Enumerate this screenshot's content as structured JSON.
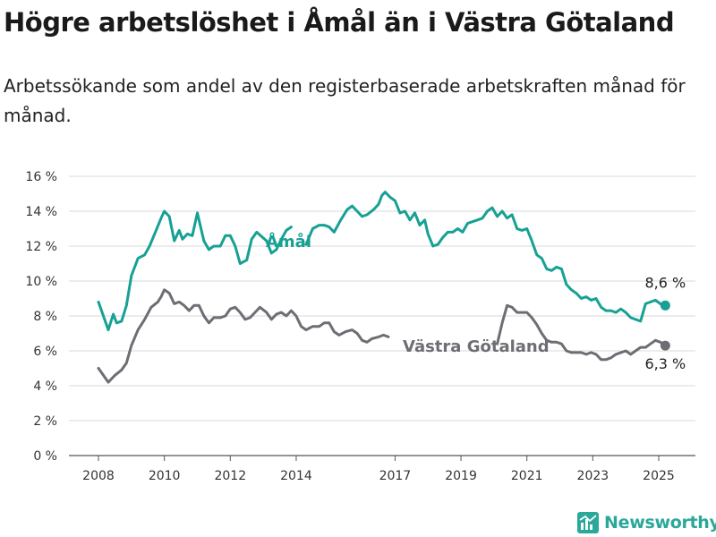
{
  "title": "Högre arbetslöshet i Åmål än i Västra Götaland",
  "subtitle": "Arbetssökande som andel av den registerbaserade arbetskraften månad för månad.",
  "brand": {
    "name": "Newsworthy",
    "icon": "bar-chart-icon",
    "color": "#2aa89a"
  },
  "chart_data": {
    "type": "line",
    "title": "Högre arbetslöshet i Åmål än i Västra Götaland",
    "subtitle": "Arbetssökande som andel av den registerbaserade arbetskraften månad för månad.",
    "xlabel": "",
    "ylabel": "",
    "xlim": [
      2007.9,
      2026.1
    ],
    "ylim": [
      0,
      16
    ],
    "x_ticks": [
      2008,
      2010,
      2012,
      2014,
      2017,
      2019,
      2021,
      2023,
      2025
    ],
    "x_tick_labels": [
      "2008",
      "2010",
      "2012",
      "2014",
      "2017",
      "2019",
      "2021",
      "2023",
      "2025"
    ],
    "y_ticks": [
      0,
      2,
      4,
      6,
      8,
      10,
      12,
      14,
      16
    ],
    "y_tick_labels": [
      "0 %",
      "2 %",
      "4 %",
      "6 %",
      "8 %",
      "10 %",
      "12 %",
      "14 %",
      "16 %"
    ],
    "grid": "horizontal",
    "legend": "inline labels",
    "series": [
      {
        "name": "Åmål",
        "color": "#17a094",
        "end_label": "8,6 %",
        "points": [
          [
            2008.0,
            8.8
          ],
          [
            2008.15,
            8.0
          ],
          [
            2008.3,
            7.2
          ],
          [
            2008.45,
            8.1
          ],
          [
            2008.55,
            7.6
          ],
          [
            2008.7,
            7.7
          ],
          [
            2008.85,
            8.6
          ],
          [
            2009.0,
            10.3
          ],
          [
            2009.2,
            11.3
          ],
          [
            2009.4,
            11.5
          ],
          [
            2009.55,
            12.0
          ],
          [
            2009.75,
            12.9
          ],
          [
            2009.9,
            13.6
          ],
          [
            2010.0,
            14.0
          ],
          [
            2010.15,
            13.7
          ],
          [
            2010.3,
            12.3
          ],
          [
            2010.45,
            12.9
          ],
          [
            2010.55,
            12.4
          ],
          [
            2010.7,
            12.7
          ],
          [
            2010.85,
            12.6
          ],
          [
            2011.0,
            13.9
          ],
          [
            2011.2,
            12.3
          ],
          [
            2011.35,
            11.8
          ],
          [
            2011.5,
            12.0
          ],
          [
            2011.7,
            12.0
          ],
          [
            2011.85,
            12.6
          ],
          [
            2012.0,
            12.6
          ],
          [
            2012.15,
            12.0
          ],
          [
            2012.3,
            11.0
          ],
          [
            2012.5,
            11.2
          ],
          [
            2012.65,
            12.4
          ],
          [
            2012.8,
            12.8
          ],
          [
            2013.1,
            12.3
          ],
          [
            2013.25,
            11.6
          ],
          [
            2013.4,
            11.8
          ],
          [
            2013.55,
            12.4
          ],
          [
            2013.7,
            12.9
          ],
          [
            2013.85,
            13.1
          ],
          [
            2014.3,
            12.1
          ],
          [
            2014.5,
            13.0
          ],
          [
            2014.7,
            13.2
          ],
          [
            2014.85,
            13.2
          ],
          [
            2015.0,
            13.1
          ],
          [
            2015.15,
            12.8
          ],
          [
            2015.35,
            13.5
          ],
          [
            2015.55,
            14.1
          ],
          [
            2015.7,
            14.3
          ],
          [
            2015.85,
            14.0
          ],
          [
            2016.0,
            13.7
          ],
          [
            2016.15,
            13.8
          ],
          [
            2016.35,
            14.1
          ],
          [
            2016.5,
            14.4
          ],
          [
            2016.6,
            14.9
          ],
          [
            2016.7,
            15.1
          ],
          [
            2016.85,
            14.8
          ],
          [
            2017.0,
            14.6
          ],
          [
            2017.15,
            13.9
          ],
          [
            2017.3,
            14.0
          ],
          [
            2017.45,
            13.5
          ],
          [
            2017.6,
            13.9
          ],
          [
            2017.75,
            13.2
          ],
          [
            2017.9,
            13.5
          ],
          [
            2018.0,
            12.7
          ],
          [
            2018.15,
            12.0
          ],
          [
            2018.3,
            12.1
          ],
          [
            2018.45,
            12.5
          ],
          [
            2018.6,
            12.8
          ],
          [
            2018.75,
            12.8
          ],
          [
            2018.9,
            13.0
          ],
          [
            2019.05,
            12.8
          ],
          [
            2019.2,
            13.3
          ],
          [
            2019.35,
            13.4
          ],
          [
            2019.5,
            13.5
          ],
          [
            2019.65,
            13.6
          ],
          [
            2019.8,
            14.0
          ],
          [
            2019.95,
            14.2
          ],
          [
            2020.1,
            13.7
          ],
          [
            2020.25,
            14.0
          ],
          [
            2020.4,
            13.6
          ],
          [
            2020.55,
            13.8
          ],
          [
            2020.7,
            13.0
          ],
          [
            2020.85,
            12.9
          ],
          [
            2021.0,
            13.0
          ],
          [
            2021.15,
            12.3
          ],
          [
            2021.3,
            11.5
          ],
          [
            2021.45,
            11.3
          ],
          [
            2021.6,
            10.7
          ],
          [
            2021.75,
            10.6
          ],
          [
            2021.9,
            10.8
          ],
          [
            2022.05,
            10.7
          ],
          [
            2022.2,
            9.8
          ],
          [
            2022.35,
            9.5
          ],
          [
            2022.5,
            9.3
          ],
          [
            2022.65,
            9.0
          ],
          [
            2022.8,
            9.1
          ],
          [
            2022.95,
            8.9
          ],
          [
            2023.1,
            9.0
          ],
          [
            2023.25,
            8.5
          ],
          [
            2023.4,
            8.3
          ],
          [
            2023.55,
            8.3
          ],
          [
            2023.7,
            8.2
          ],
          [
            2023.85,
            8.4
          ],
          [
            2024.0,
            8.2
          ],
          [
            2024.15,
            7.9
          ],
          [
            2024.3,
            7.8
          ],
          [
            2024.45,
            7.7
          ],
          [
            2024.6,
            8.7
          ],
          [
            2024.75,
            8.8
          ],
          [
            2024.9,
            8.9
          ],
          [
            2025.05,
            8.7
          ],
          [
            2025.2,
            8.6
          ]
        ],
        "gap": [
          2013.85,
          2014.3
        ]
      },
      {
        "name": "Västra Götaland",
        "color": "#6d6e74",
        "end_label": "6,3 %",
        "points": [
          [
            2008.0,
            5.0
          ],
          [
            2008.15,
            4.6
          ],
          [
            2008.3,
            4.2
          ],
          [
            2008.5,
            4.6
          ],
          [
            2008.7,
            4.9
          ],
          [
            2008.85,
            5.3
          ],
          [
            2009.0,
            6.3
          ],
          [
            2009.2,
            7.2
          ],
          [
            2009.4,
            7.8
          ],
          [
            2009.6,
            8.5
          ],
          [
            2009.8,
            8.8
          ],
          [
            2009.9,
            9.1
          ],
          [
            2010.0,
            9.5
          ],
          [
            2010.15,
            9.3
          ],
          [
            2010.3,
            8.7
          ],
          [
            2010.45,
            8.8
          ],
          [
            2010.6,
            8.6
          ],
          [
            2010.75,
            8.3
          ],
          [
            2010.9,
            8.6
          ],
          [
            2011.05,
            8.6
          ],
          [
            2011.2,
            8.0
          ],
          [
            2011.35,
            7.6
          ],
          [
            2011.5,
            7.9
          ],
          [
            2011.7,
            7.9
          ],
          [
            2011.85,
            8.0
          ],
          [
            2012.0,
            8.4
          ],
          [
            2012.15,
            8.5
          ],
          [
            2012.3,
            8.2
          ],
          [
            2012.45,
            7.8
          ],
          [
            2012.6,
            7.9
          ],
          [
            2012.75,
            8.2
          ],
          [
            2012.9,
            8.5
          ],
          [
            2013.1,
            8.2
          ],
          [
            2013.25,
            7.8
          ],
          [
            2013.4,
            8.1
          ],
          [
            2013.55,
            8.2
          ],
          [
            2013.7,
            8.0
          ],
          [
            2013.85,
            8.3
          ],
          [
            2014.0,
            8.0
          ],
          [
            2014.15,
            7.4
          ],
          [
            2014.3,
            7.2
          ],
          [
            2014.5,
            7.4
          ],
          [
            2014.7,
            7.4
          ],
          [
            2014.85,
            7.6
          ],
          [
            2015.0,
            7.6
          ],
          [
            2015.15,
            7.1
          ],
          [
            2015.3,
            6.9
          ],
          [
            2015.5,
            7.1
          ],
          [
            2015.7,
            7.2
          ],
          [
            2015.85,
            7.0
          ],
          [
            2016.0,
            6.6
          ],
          [
            2016.15,
            6.5
          ],
          [
            2016.3,
            6.7
          ],
          [
            2016.5,
            6.8
          ],
          [
            2016.65,
            6.9
          ],
          [
            2016.8,
            6.8
          ],
          [
            2020.1,
            6.4
          ],
          [
            2020.25,
            7.6
          ],
          [
            2020.4,
            8.6
          ],
          [
            2020.55,
            8.5
          ],
          [
            2020.7,
            8.2
          ],
          [
            2020.85,
            8.2
          ],
          [
            2021.0,
            8.2
          ],
          [
            2021.15,
            7.9
          ],
          [
            2021.3,
            7.5
          ],
          [
            2021.45,
            7.0
          ],
          [
            2021.6,
            6.6
          ],
          [
            2021.75,
            6.5
          ],
          [
            2021.9,
            6.5
          ],
          [
            2022.05,
            6.4
          ],
          [
            2022.2,
            6.0
          ],
          [
            2022.35,
            5.9
          ],
          [
            2022.5,
            5.9
          ],
          [
            2022.65,
            5.9
          ],
          [
            2022.8,
            5.8
          ],
          [
            2022.95,
            5.9
          ],
          [
            2023.1,
            5.8
          ],
          [
            2023.25,
            5.5
          ],
          [
            2023.4,
            5.5
          ],
          [
            2023.55,
            5.6
          ],
          [
            2023.7,
            5.8
          ],
          [
            2023.85,
            5.9
          ],
          [
            2024.0,
            6.0
          ],
          [
            2024.15,
            5.8
          ],
          [
            2024.3,
            6.0
          ],
          [
            2024.45,
            6.2
          ],
          [
            2024.6,
            6.2
          ],
          [
            2024.75,
            6.4
          ],
          [
            2024.9,
            6.6
          ],
          [
            2025.05,
            6.5
          ],
          [
            2025.2,
            6.3
          ]
        ],
        "gap": [
          2016.8,
          2020.1
        ]
      }
    ]
  }
}
